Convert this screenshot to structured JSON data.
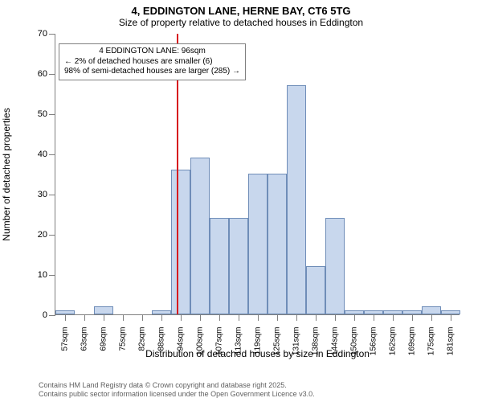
{
  "title": "4, EDDINGTON LANE, HERNE BAY, CT6 5TG",
  "subtitle": "Size of property relative to detached houses in Eddington",
  "chart": {
    "type": "histogram",
    "ylabel": "Number of detached properties",
    "xlabel": "Distribution of detached houses by size in Eddington",
    "ymax": 70,
    "ytick_step": 10,
    "yticks": [
      0,
      10,
      20,
      30,
      40,
      50,
      60,
      70
    ],
    "categories": [
      "57sqm",
      "63sqm",
      "69sqm",
      "75sqm",
      "82sqm",
      "88sqm",
      "94sqm",
      "100sqm",
      "107sqm",
      "113sqm",
      "119sqm",
      "125sqm",
      "131sqm",
      "138sqm",
      "144sqm",
      "150sqm",
      "156sqm",
      "162sqm",
      "169sqm",
      "175sqm",
      "181sqm"
    ],
    "values": [
      1,
      0,
      2,
      0,
      0,
      1,
      36,
      39,
      24,
      24,
      35,
      35,
      57,
      12,
      24,
      1,
      1,
      1,
      1,
      2,
      1
    ],
    "bar_fill": "#c8d7ed",
    "bar_stroke": "#6f8db8",
    "bar_width_ratio": 0.96,
    "background": "#ffffff",
    "axis_color": "#808080",
    "tick_fontsize": 11,
    "label_fontsize": 12,
    "marker": {
      "position_category_index": 6.3,
      "color": "#d71a1f",
      "lines": [
        "4 EDDINGTON LANE: 96sqm",
        "← 2% of detached houses are smaller (6)",
        "98% of semi-detached houses are larger (285) →"
      ]
    }
  },
  "footer": {
    "line1": "Contains HM Land Registry data © Crown copyright and database right 2025.",
    "line2": "Contains public sector information licensed under the Open Government Licence v3.0."
  }
}
